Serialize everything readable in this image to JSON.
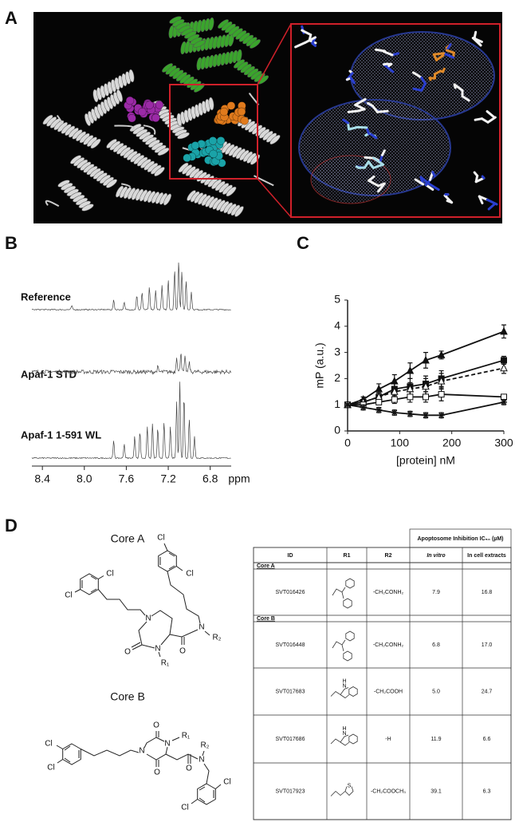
{
  "panel_labels": [
    "A",
    "B",
    "C",
    "D"
  ],
  "nmr": {
    "spectra": [
      "Reference",
      "Apaf-1 STD",
      "Apaf-1 1-591 WL"
    ],
    "xlim": [
      8.5,
      6.6
    ],
    "xticks": [
      8.4,
      {
        "value": 8,
        "label": "8.0"
      },
      7.6,
      7.2,
      6.8
    ],
    "xlabel": "ppm"
  },
  "chart_data": {
    "type": "line",
    "xlabel": "[protein] nM",
    "ylabel": "mP (a.u.)",
    "x": [
      0,
      30,
      60,
      90,
      120,
      150,
      180,
      300
    ],
    "xlim": [
      0,
      300
    ],
    "ylim": [
      0,
      5
    ],
    "xticks": [
      0,
      100,
      200,
      300
    ],
    "yticks": [
      0,
      1,
      2,
      3,
      4,
      5
    ],
    "series": [
      {
        "color": "#111111",
        "marker": "triangle",
        "dash": false,
        "values": [
          1,
          1.2,
          1.6,
          1.9,
          2.3,
          2.7,
          2.9,
          3.8
        ],
        "errors": [
          0.05,
          0.1,
          0.2,
          0.25,
          0.3,
          0.3,
          0.15,
          0.25
        ]
      },
      {
        "color": "#111111",
        "marker": "square",
        "dash": false,
        "values": [
          1,
          1.1,
          1.3,
          1.6,
          1.7,
          1.8,
          2.0,
          2.7
        ],
        "errors": [
          0.05,
          0.1,
          0.15,
          0.2,
          0.3,
          0.3,
          0.3,
          0.15
        ]
      },
      {
        "color": "#111111",
        "marker": "triangle-open",
        "dash": true,
        "values": [
          1,
          1.1,
          1.3,
          1.5,
          1.6,
          1.7,
          1.9,
          2.4
        ],
        "errors": [
          0.05,
          0.1,
          0.15,
          0.2,
          0.25,
          0.3,
          0.3,
          0.2
        ]
      },
      {
        "color": "#111111",
        "marker": "square-open",
        "dash": false,
        "values": [
          1,
          1.0,
          1.1,
          1.2,
          1.3,
          1.3,
          1.4,
          1.3
        ],
        "errors": [
          0.05,
          0.1,
          0.1,
          0.15,
          0.2,
          0.2,
          0.25,
          0.1
        ]
      },
      {
        "color": "#111111",
        "marker": "star",
        "dash": false,
        "values": [
          1,
          0.9,
          0.8,
          0.7,
          0.65,
          0.6,
          0.6,
          1.1
        ],
        "errors": [
          0.05,
          0.1,
          0.1,
          0.1,
          0.1,
          0.1,
          0.1,
          0.1
        ]
      }
    ]
  },
  "structures": [
    {
      "title": "Core A",
      "atoms": [
        "Cl",
        "Cl",
        "Cl",
        "Cl",
        "N",
        "N",
        "N",
        "O",
        "O",
        "R₁",
        "R₂"
      ]
    },
    {
      "title": "Core B",
      "atoms": [
        "Cl",
        "Cl",
        "Cl",
        "Cl",
        "N",
        "N",
        "N",
        "O",
        "O",
        "O",
        "R₁",
        "R₂"
      ]
    }
  ],
  "table": {
    "group_header": "Apoptosome Inhibition IC₅₀ (µM)",
    "columns": [
      "ID",
      "R1",
      "R2",
      "In vitro",
      "In cell extracts"
    ],
    "sections": [
      {
        "label": "Core A",
        "rows": [
          {
            "cells": [
              "SVT016426",
              "-CH₂CONH₂",
              "7.9",
              "16.8"
            ]
          }
        ]
      },
      {
        "label": "Core B",
        "rows": [
          {
            "cells": [
              "SVT016448",
              "-CH₂CONH₂",
              "6.8",
              "17.0"
            ]
          },
          {
            "cells": [
              "SVT017683",
              "-CH₂COOH",
              "5.0",
              "24.7"
            ],
            "r1_atoms": [
              "H",
              "N"
            ]
          },
          {
            "cells": [
              "SVT017686",
              "-H",
              "11.9",
              "6.6"
            ],
            "r1_atoms": [
              "H",
              "N"
            ]
          },
          {
            "cells": [
              "SVT017923",
              "-CH₂COOCH₃",
              "39.1",
              "6.3"
            ],
            "r1_atoms": [
              "S"
            ]
          }
        ]
      }
    ]
  }
}
